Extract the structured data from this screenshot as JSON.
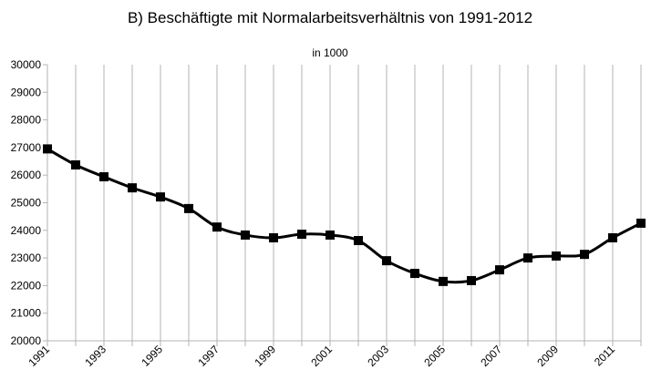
{
  "chart_data": {
    "type": "line",
    "title": "B) Beschäftigte mit Normalarbeitsverhältnis von 1991-2012",
    "subtitle": "in 1000",
    "xlabel": "",
    "ylabel": "",
    "ylim": [
      20000,
      30000
    ],
    "yticks": [
      20000,
      21000,
      22000,
      23000,
      24000,
      25000,
      26000,
      27000,
      28000,
      29000,
      30000
    ],
    "xticks": [
      "1991",
      "1993",
      "1995",
      "1997",
      "1999",
      "2001",
      "2003",
      "2005",
      "2007",
      "2009",
      "2011"
    ],
    "grid": "vertical",
    "legend": "none",
    "line_color": "#000000",
    "grid_color": "#b3b3b3",
    "marker": "square",
    "x": [
      1991,
      1992,
      1993,
      1994,
      1995,
      1996,
      1997,
      1998,
      1999,
      2000,
      2001,
      2002,
      2003,
      2004,
      2005,
      2006,
      2007,
      2008,
      2009,
      2010,
      2011,
      2012
    ],
    "values": [
      26950,
      26370,
      25940,
      25540,
      25210,
      24790,
      24120,
      23830,
      23730,
      23860,
      23830,
      23630,
      22900,
      22440,
      22150,
      22180,
      22570,
      23000,
      23070,
      23130,
      23730,
      24260
    ]
  }
}
